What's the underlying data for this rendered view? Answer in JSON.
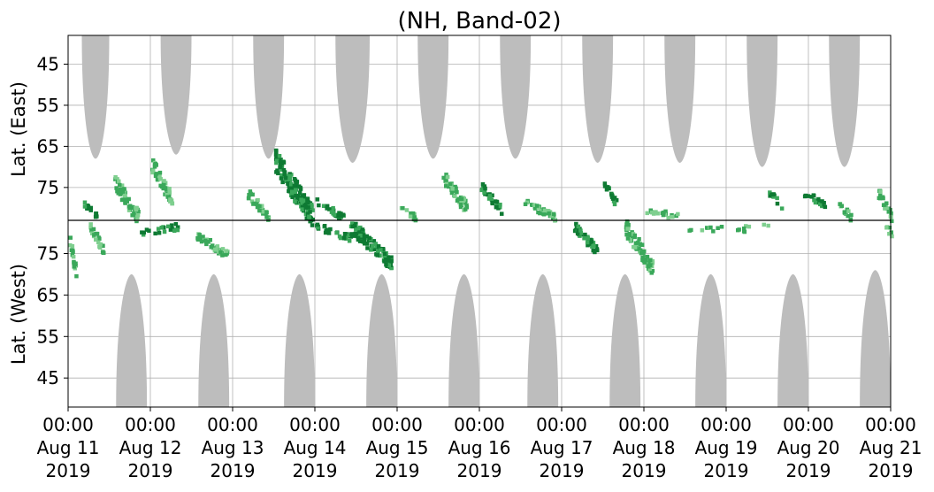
{
  "chart_data": {
    "type": "heatmap",
    "title": "(NH, Band-02)",
    "ylabel_top": "Lat. (East)",
    "ylabel_bottom": "Lat. (West)",
    "y_tick_labels_top": [
      "45",
      "55",
      "65",
      "75"
    ],
    "y_tick_labels_bottom": [
      "75",
      "65",
      "55",
      "45"
    ],
    "x_tick_labels": [
      {
        "time": "00:00",
        "date": "Aug 11",
        "year": "2019"
      },
      {
        "time": "00:00",
        "date": "Aug 12",
        "year": "2019"
      },
      {
        "time": "00:00",
        "date": "Aug 13",
        "year": "2019"
      },
      {
        "time": "00:00",
        "date": "Aug 14",
        "year": "2019"
      },
      {
        "time": "00:00",
        "date": "Aug 15",
        "year": "2019"
      },
      {
        "time": "00:00",
        "date": "Aug 16",
        "year": "2019"
      },
      {
        "time": "00:00",
        "date": "Aug 17",
        "year": "2019"
      },
      {
        "time": "00:00",
        "date": "Aug 18",
        "year": "2019"
      },
      {
        "time": "00:00",
        "date": "Aug 19",
        "year": "2019"
      },
      {
        "time": "00:00",
        "date": "Aug 20",
        "year": "2019"
      },
      {
        "time": "00:00",
        "date": "Aug 21",
        "year": "2019"
      }
    ],
    "x_range": [
      "2019-08-11 00:00",
      "2019-08-21 00:00"
    ],
    "y_range_top": [
      38,
      83
    ],
    "y_range_bottom": [
      83,
      38
    ],
    "grid": true,
    "no_data_color": "#bdbdbd",
    "colors": [
      "#7fcf8f",
      "#3aa85a",
      "#0e7a33"
    ],
    "no_data_top": [
      {
        "start": "2019-08-11 04:00",
        "end": "2019-08-11 12:00",
        "min_lat": 68
      },
      {
        "start": "2019-08-12 03:00",
        "end": "2019-08-12 12:00",
        "min_lat": 67
      },
      {
        "start": "2019-08-13 06:00",
        "end": "2019-08-13 15:00",
        "min_lat": 68
      },
      {
        "start": "2019-08-14 06:00",
        "end": "2019-08-14 16:00",
        "min_lat": 69
      },
      {
        "start": "2019-08-15 06:00",
        "end": "2019-08-15 15:00",
        "min_lat": 68
      },
      {
        "start": "2019-08-16 06:00",
        "end": "2019-08-16 15:00",
        "min_lat": 68
      },
      {
        "start": "2019-08-17 06:00",
        "end": "2019-08-17 15:00",
        "min_lat": 69
      },
      {
        "start": "2019-08-18 06:00",
        "end": "2019-08-18 15:00",
        "min_lat": 69
      },
      {
        "start": "2019-08-19 06:00",
        "end": "2019-08-19 15:00",
        "min_lat": 70
      },
      {
        "start": "2019-08-20 06:00",
        "end": "2019-08-20 15:00",
        "min_lat": 70
      }
    ],
    "no_data_bottom": [
      {
        "start": "2019-08-11 14:00",
        "end": "2019-08-11 23:00",
        "max_lat": 70
      },
      {
        "start": "2019-08-12 14:00",
        "end": "2019-08-12 23:00",
        "max_lat": 70
      },
      {
        "start": "2019-08-13 15:00",
        "end": "2019-08-14 00:00",
        "max_lat": 70
      },
      {
        "start": "2019-08-14 15:00",
        "end": "2019-08-15 00:00",
        "max_lat": 70
      },
      {
        "start": "2019-08-15 15:00",
        "end": "2019-08-16 00:00",
        "max_lat": 70
      },
      {
        "start": "2019-08-16 14:00",
        "end": "2019-08-16 23:00",
        "max_lat": 70
      },
      {
        "start": "2019-08-17 14:00",
        "end": "2019-08-17 23:00",
        "max_lat": 70
      },
      {
        "start": "2019-08-18 15:00",
        "end": "2019-08-19 00:00",
        "max_lat": 70
      },
      {
        "start": "2019-08-19 15:00",
        "end": "2019-08-20 00:00",
        "max_lat": 70
      },
      {
        "start": "2019-08-20 15:00",
        "end": "2019-08-21 00:00",
        "max_lat": 71
      }
    ],
    "detections": [
      {
        "start": "2019-08-11 00:00",
        "end": "2019-08-11 02:00",
        "lat_from": 79,
        "lat_to": 70,
        "side": "west",
        "level": 2
      },
      {
        "start": "2019-08-11 04:00",
        "end": "2019-08-11 08:00",
        "lat_from": 78,
        "lat_to": 82,
        "side": "east",
        "level": 3
      },
      {
        "start": "2019-08-11 06:00",
        "end": "2019-08-11 10:00",
        "lat_from": 82,
        "lat_to": 76,
        "side": "west",
        "level": 2
      },
      {
        "start": "2019-08-11 13:00",
        "end": "2019-08-11 20:00",
        "lat_from": 73,
        "lat_to": 82,
        "side": "east",
        "level": 2
      },
      {
        "start": "2019-08-11 20:00",
        "end": "2019-08-12 08:00",
        "lat_from": 80,
        "lat_to": 82,
        "side": "west",
        "level": 3
      },
      {
        "start": "2019-08-12 00:00",
        "end": "2019-08-12 06:00",
        "lat_from": 69,
        "lat_to": 78,
        "side": "east",
        "level": 2
      },
      {
        "start": "2019-08-12 13:00",
        "end": "2019-08-12 22:00",
        "lat_from": 80,
        "lat_to": 75,
        "side": "west",
        "level": 2
      },
      {
        "start": "2019-08-13 04:00",
        "end": "2019-08-13 10:00",
        "lat_from": 76,
        "lat_to": 82,
        "side": "east",
        "level": 2
      },
      {
        "start": "2019-08-13 12:00",
        "end": "2019-08-13 23:00",
        "lat_from": 68,
        "lat_to": 82,
        "side": "east",
        "level": 3
      },
      {
        "start": "2019-08-14 00:00",
        "end": "2019-08-14 08:00",
        "lat_from": 78,
        "lat_to": 82,
        "side": "east",
        "level": 3
      },
      {
        "start": "2019-08-14 00:00",
        "end": "2019-08-14 10:00",
        "lat_from": 82,
        "lat_to": 79,
        "side": "west",
        "level": 3
      },
      {
        "start": "2019-08-14 10:00",
        "end": "2019-08-14 22:00",
        "lat_from": 82,
        "lat_to": 73,
        "side": "west",
        "level": 3
      },
      {
        "start": "2019-08-15 00:00",
        "end": "2019-08-15 05:00",
        "lat_from": 79,
        "lat_to": 82,
        "side": "east",
        "level": 2
      },
      {
        "start": "2019-08-15 13:00",
        "end": "2019-08-15 20:00",
        "lat_from": 72,
        "lat_to": 80,
        "side": "east",
        "level": 2
      },
      {
        "start": "2019-08-16 00:00",
        "end": "2019-08-16 06:00",
        "lat_from": 74,
        "lat_to": 80,
        "side": "east",
        "level": 3
      },
      {
        "start": "2019-08-16 12:00",
        "end": "2019-08-16 22:00",
        "lat_from": 78,
        "lat_to": 82,
        "side": "east",
        "level": 2
      },
      {
        "start": "2019-08-17 03:00",
        "end": "2019-08-17 10:00",
        "lat_from": 82,
        "lat_to": 76,
        "side": "west",
        "level": 3
      },
      {
        "start": "2019-08-17 12:00",
        "end": "2019-08-17 16:00",
        "lat_from": 74,
        "lat_to": 79,
        "side": "east",
        "level": 3
      },
      {
        "start": "2019-08-17 18:00",
        "end": "2019-08-18 02:00",
        "lat_from": 82,
        "lat_to": 72,
        "side": "west",
        "level": 2
      },
      {
        "start": "2019-08-18 00:00",
        "end": "2019-08-18 10:00",
        "lat_from": 80,
        "lat_to": 82,
        "side": "east",
        "level": 2
      },
      {
        "start": "2019-08-18 12:00",
        "end": "2019-08-19 00:00",
        "lat_from": 81,
        "lat_to": 82,
        "side": "west",
        "level": 2
      },
      {
        "start": "2019-08-19 02:00",
        "end": "2019-08-19 12:00",
        "lat_from": 81,
        "lat_to": 82,
        "side": "west",
        "level": 2
      },
      {
        "start": "2019-08-19 12:00",
        "end": "2019-08-19 16:00",
        "lat_from": 76,
        "lat_to": 79,
        "side": "east",
        "level": 3
      },
      {
        "start": "2019-08-19 22:00",
        "end": "2019-08-20 05:00",
        "lat_from": 76,
        "lat_to": 79,
        "side": "east",
        "level": 3
      },
      {
        "start": "2019-08-20 08:00",
        "end": "2019-08-20 12:00",
        "lat_from": 78,
        "lat_to": 82,
        "side": "east",
        "level": 2
      },
      {
        "start": "2019-08-20 20:00",
        "end": "2019-08-21 00:00",
        "lat_from": 76,
        "lat_to": 82,
        "side": "east",
        "level": 2
      },
      {
        "start": "2019-08-20 22:00",
        "end": "2019-08-21 00:00",
        "lat_from": 82,
        "lat_to": 80,
        "side": "west",
        "level": 2
      }
    ]
  }
}
